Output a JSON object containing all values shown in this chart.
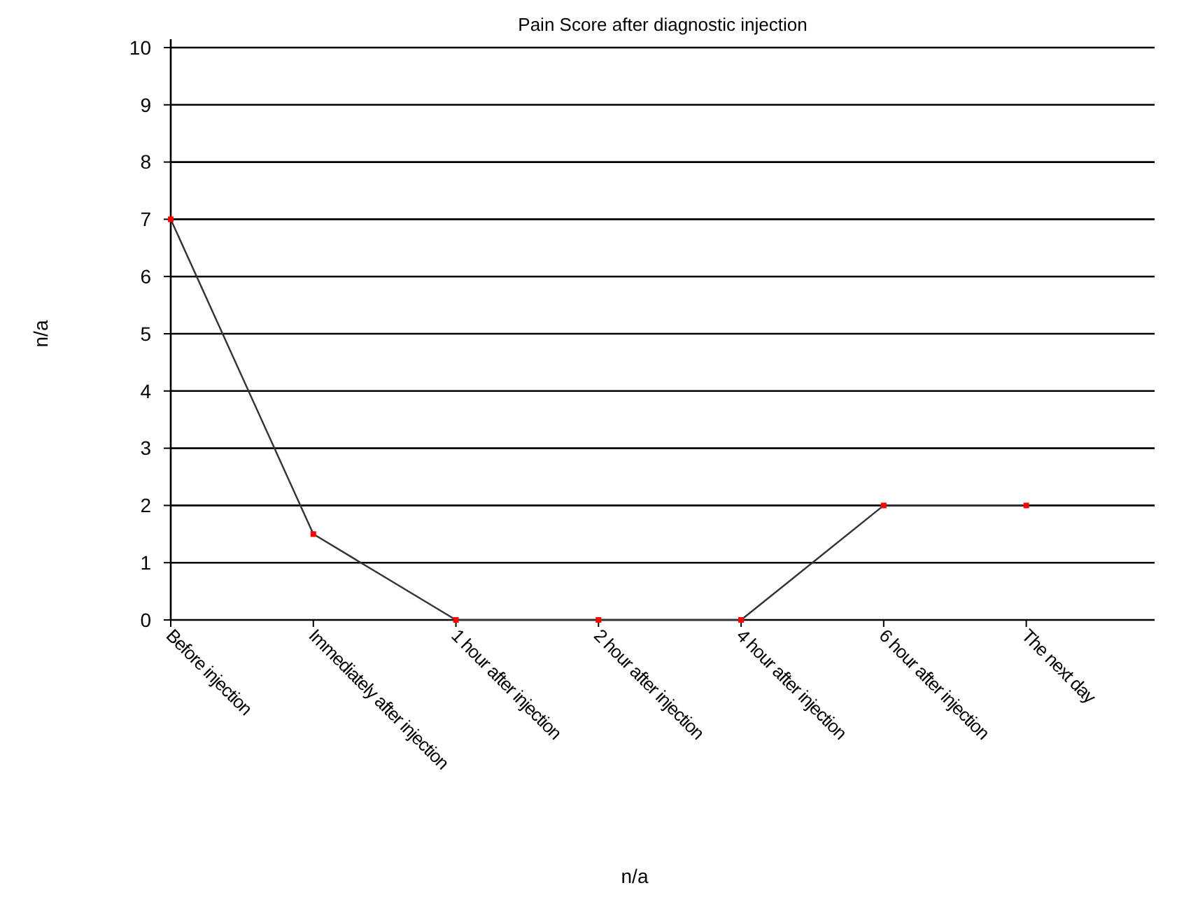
{
  "chart_data": {
    "type": "line",
    "title": "Pain Score after diagnostic injection",
    "xlabel": "n/a",
    "ylabel": "n/a",
    "categories": [
      "Before injection",
      "Immediately after injection",
      "1 hour after injection",
      "2 hour after injection",
      "4 hour after injection",
      "6 hour after injection",
      "The next day"
    ],
    "series": [
      {
        "color": "#333333",
        "values": [
          7,
          1.5,
          0,
          0,
          0,
          2,
          2
        ]
      }
    ],
    "ylim": [
      0,
      10
    ],
    "yticks": [
      0,
      1,
      2,
      3,
      4,
      5,
      6,
      7,
      8,
      9,
      10
    ],
    "grid": "y",
    "marker": "square",
    "line_style": "solid"
  }
}
